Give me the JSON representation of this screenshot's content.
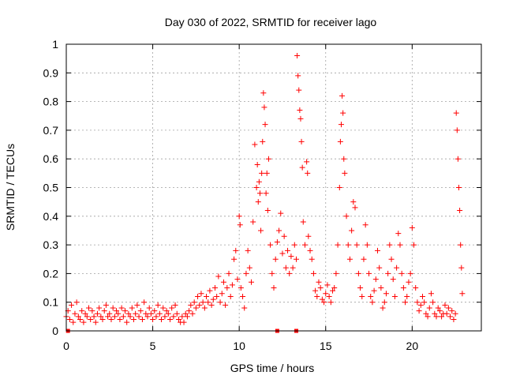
{
  "chart_data": {
    "type": "scatter",
    "title": "Day 030 of 2022, SRMTID for receiver lago",
    "xlabel": "GPS time / hours",
    "ylabel": "SRMTID / TECUs",
    "xlim": [
      0,
      24
    ],
    "ylim": [
      0,
      1
    ],
    "xticks": [
      0,
      5,
      10,
      15,
      20
    ],
    "xtick_labels": [
      "0",
      "5",
      "10",
      "15",
      "20"
    ],
    "yticks": [
      0,
      0.1,
      0.2,
      0.3,
      0.4,
      0.5,
      0.6,
      0.7,
      0.8,
      0.9,
      1
    ],
    "ytick_labels": [
      "0",
      "0.1",
      "0.2",
      "0.3",
      "0.4",
      "0.5",
      "0.6",
      "0.7",
      "0.8",
      "0.9",
      "1"
    ],
    "grid": true,
    "marker": "plus",
    "marker_color": "#ff0000",
    "series": [
      {
        "name": "SRMTID",
        "points": [
          [
            0.0,
            0.05
          ],
          [
            0.1,
            0.07
          ],
          [
            0.2,
            0.04
          ],
          [
            0.3,
            0.09
          ],
          [
            0.4,
            0.03
          ],
          [
            0.5,
            0.06
          ],
          [
            0.6,
            0.1
          ],
          [
            0.7,
            0.05
          ],
          [
            0.8,
            0.04
          ],
          [
            0.9,
            0.07
          ],
          [
            1.0,
            0.03
          ],
          [
            1.1,
            0.06
          ],
          [
            1.2,
            0.05
          ],
          [
            1.3,
            0.08
          ],
          [
            1.4,
            0.04
          ],
          [
            1.5,
            0.07
          ],
          [
            1.6,
            0.05
          ],
          [
            1.7,
            0.03
          ],
          [
            1.8,
            0.06
          ],
          [
            1.9,
            0.08
          ],
          [
            2.0,
            0.05
          ],
          [
            2.1,
            0.04
          ],
          [
            2.2,
            0.07
          ],
          [
            2.3,
            0.09
          ],
          [
            2.4,
            0.05
          ],
          [
            2.5,
            0.06
          ],
          [
            2.6,
            0.04
          ],
          [
            2.7,
            0.08
          ],
          [
            2.8,
            0.05
          ],
          [
            2.9,
            0.07
          ],
          [
            3.0,
            0.06
          ],
          [
            3.1,
            0.04
          ],
          [
            3.2,
            0.08
          ],
          [
            3.3,
            0.05
          ],
          [
            3.4,
            0.07
          ],
          [
            3.5,
            0.03
          ],
          [
            3.6,
            0.06
          ],
          [
            3.7,
            0.05
          ],
          [
            3.8,
            0.08
          ],
          [
            3.9,
            0.04
          ],
          [
            4.0,
            0.06
          ],
          [
            4.1,
            0.09
          ],
          [
            4.2,
            0.05
          ],
          [
            4.3,
            0.07
          ],
          [
            4.4,
            0.04
          ],
          [
            4.5,
            0.1
          ],
          [
            4.6,
            0.06
          ],
          [
            4.7,
            0.05
          ],
          [
            4.8,
            0.08
          ],
          [
            4.9,
            0.06
          ],
          [
            5.0,
            0.04
          ],
          [
            5.1,
            0.07
          ],
          [
            5.2,
            0.05
          ],
          [
            5.3,
            0.09
          ],
          [
            5.4,
            0.06
          ],
          [
            5.5,
            0.04
          ],
          [
            5.6,
            0.08
          ],
          [
            5.7,
            0.05
          ],
          [
            5.8,
            0.07
          ],
          [
            5.9,
            0.06
          ],
          [
            6.0,
            0.04
          ],
          [
            6.1,
            0.08
          ],
          [
            6.2,
            0.05
          ],
          [
            6.3,
            0.09
          ],
          [
            6.4,
            0.06
          ],
          [
            6.5,
            0.04
          ],
          [
            6.6,
            0.03
          ],
          [
            6.7,
            0.05
          ],
          [
            6.8,
            0.03
          ],
          [
            6.9,
            0.06
          ],
          [
            7.0,
            0.05
          ],
          [
            7.1,
            0.07
          ],
          [
            7.2,
            0.09
          ],
          [
            7.3,
            0.06
          ],
          [
            7.4,
            0.1
          ],
          [
            7.5,
            0.08
          ],
          [
            7.6,
            0.12
          ],
          [
            7.7,
            0.09
          ],
          [
            7.8,
            0.13
          ],
          [
            7.9,
            0.1
          ],
          [
            8.0,
            0.08
          ],
          [
            8.1,
            0.12
          ],
          [
            8.2,
            0.1
          ],
          [
            8.3,
            0.14
          ],
          [
            8.4,
            0.09
          ],
          [
            8.5,
            0.11
          ],
          [
            8.6,
            0.15
          ],
          [
            8.7,
            0.12
          ],
          [
            8.8,
            0.19
          ],
          [
            8.9,
            0.1
          ],
          [
            9.0,
            0.13
          ],
          [
            9.1,
            0.17
          ],
          [
            9.2,
            0.09
          ],
          [
            9.3,
            0.15
          ],
          [
            9.4,
            0.2
          ],
          [
            9.5,
            0.12
          ],
          [
            9.6,
            0.16
          ],
          [
            9.7,
            0.25
          ],
          [
            9.8,
            0.28
          ],
          [
            9.9,
            0.18
          ],
          [
            10.0,
            0.4
          ],
          [
            10.05,
            0.37
          ],
          [
            10.1,
            0.15
          ],
          [
            10.2,
            0.12
          ],
          [
            10.3,
            0.08
          ],
          [
            10.4,
            0.2
          ],
          [
            10.5,
            0.28
          ],
          [
            10.6,
            0.22
          ],
          [
            10.7,
            0.17
          ],
          [
            10.8,
            0.38
          ],
          [
            10.9,
            0.65
          ],
          [
            11.0,
            0.5
          ],
          [
            11.05,
            0.58
          ],
          [
            11.1,
            0.45
          ],
          [
            11.15,
            0.52
          ],
          [
            11.2,
            0.48
          ],
          [
            11.25,
            0.35
          ],
          [
            11.3,
            0.55
          ],
          [
            11.35,
            0.66
          ],
          [
            11.4,
            0.83
          ],
          [
            11.45,
            0.78
          ],
          [
            11.5,
            0.72
          ],
          [
            11.55,
            0.48
          ],
          [
            11.6,
            0.55
          ],
          [
            11.65,
            0.42
          ],
          [
            11.7,
            0.6
          ],
          [
            11.8,
            0.3
          ],
          [
            11.9,
            0.2
          ],
          [
            12.0,
            0.15
          ],
          [
            12.1,
            0.25
          ],
          [
            12.2,
            0.31
          ],
          [
            12.3,
            0.35
          ],
          [
            12.4,
            0.41
          ],
          [
            12.5,
            0.27
          ],
          [
            12.6,
            0.33
          ],
          [
            12.7,
            0.22
          ],
          [
            12.8,
            0.28
          ],
          [
            12.9,
            0.2
          ],
          [
            13.0,
            0.26
          ],
          [
            13.1,
            0.22
          ],
          [
            13.2,
            0.3
          ],
          [
            13.3,
            0.25
          ],
          [
            13.35,
            0.96
          ],
          [
            13.4,
            0.89
          ],
          [
            13.45,
            0.84
          ],
          [
            13.5,
            0.77
          ],
          [
            13.55,
            0.74
          ],
          [
            13.6,
            0.66
          ],
          [
            13.65,
            0.57
          ],
          [
            13.7,
            0.38
          ],
          [
            13.8,
            0.3
          ],
          [
            13.9,
            0.59
          ],
          [
            13.95,
            0.55
          ],
          [
            14.0,
            0.33
          ],
          [
            14.1,
            0.28
          ],
          [
            14.2,
            0.25
          ],
          [
            14.3,
            0.2
          ],
          [
            14.4,
            0.14
          ],
          [
            14.5,
            0.12
          ],
          [
            14.6,
            0.17
          ],
          [
            14.7,
            0.15
          ],
          [
            14.8,
            0.11
          ],
          [
            14.9,
            0.1
          ],
          [
            15.0,
            0.13
          ],
          [
            15.1,
            0.16
          ],
          [
            15.2,
            0.12
          ],
          [
            15.3,
            0.1
          ],
          [
            15.4,
            0.14
          ],
          [
            15.5,
            0.15
          ],
          [
            15.6,
            0.2
          ],
          [
            15.7,
            0.3
          ],
          [
            15.8,
            0.5
          ],
          [
            15.85,
            0.66
          ],
          [
            15.9,
            0.72
          ],
          [
            15.95,
            0.82
          ],
          [
            16.0,
            0.76
          ],
          [
            16.05,
            0.6
          ],
          [
            16.1,
            0.55
          ],
          [
            16.2,
            0.4
          ],
          [
            16.3,
            0.3
          ],
          [
            16.4,
            0.25
          ],
          [
            16.5,
            0.35
          ],
          [
            16.6,
            0.45
          ],
          [
            16.7,
            0.43
          ],
          [
            16.8,
            0.3
          ],
          [
            16.9,
            0.2
          ],
          [
            17.0,
            0.15
          ],
          [
            17.1,
            0.12
          ],
          [
            17.2,
            0.25
          ],
          [
            17.3,
            0.37
          ],
          [
            17.4,
            0.3
          ],
          [
            17.5,
            0.2
          ],
          [
            17.6,
            0.12
          ],
          [
            17.7,
            0.1
          ],
          [
            17.8,
            0.14
          ],
          [
            17.9,
            0.18
          ],
          [
            18.0,
            0.28
          ],
          [
            18.1,
            0.22
          ],
          [
            18.2,
            0.15
          ],
          [
            18.3,
            0.08
          ],
          [
            18.4,
            0.1
          ],
          [
            18.5,
            0.13
          ],
          [
            18.6,
            0.2
          ],
          [
            18.7,
            0.3
          ],
          [
            18.8,
            0.25
          ],
          [
            18.9,
            0.18
          ],
          [
            19.0,
            0.12
          ],
          [
            19.1,
            0.22
          ],
          [
            19.2,
            0.34
          ],
          [
            19.3,
            0.3
          ],
          [
            19.4,
            0.2
          ],
          [
            19.5,
            0.15
          ],
          [
            19.6,
            0.1
          ],
          [
            19.7,
            0.12
          ],
          [
            19.8,
            0.17
          ],
          [
            19.9,
            0.2
          ],
          [
            20.0,
            0.36
          ],
          [
            20.1,
            0.3
          ],
          [
            20.2,
            0.15
          ],
          [
            20.3,
            0.1
          ],
          [
            20.4,
            0.07
          ],
          [
            20.5,
            0.09
          ],
          [
            20.6,
            0.12
          ],
          [
            20.7,
            0.1
          ],
          [
            20.8,
            0.06
          ],
          [
            20.9,
            0.05
          ],
          [
            21.0,
            0.08
          ],
          [
            21.1,
            0.13
          ],
          [
            21.2,
            0.1
          ],
          [
            21.3,
            0.06
          ],
          [
            21.4,
            0.05
          ],
          [
            21.5,
            0.08
          ],
          [
            21.6,
            0.07
          ],
          [
            21.7,
            0.05
          ],
          [
            21.8,
            0.06
          ],
          [
            21.9,
            0.09
          ],
          [
            22.0,
            0.06
          ],
          [
            22.1,
            0.08
          ],
          [
            22.2,
            0.05
          ],
          [
            22.3,
            0.07
          ],
          [
            22.4,
            0.04
          ],
          [
            22.5,
            0.06
          ],
          [
            22.55,
            0.76
          ],
          [
            22.6,
            0.7
          ],
          [
            22.65,
            0.6
          ],
          [
            22.7,
            0.5
          ],
          [
            22.75,
            0.42
          ],
          [
            22.8,
            0.3
          ],
          [
            22.85,
            0.22
          ],
          [
            22.9,
            0.13
          ]
        ]
      }
    ],
    "zero_markers": [
      0.1,
      12.2,
      13.3
    ]
  }
}
